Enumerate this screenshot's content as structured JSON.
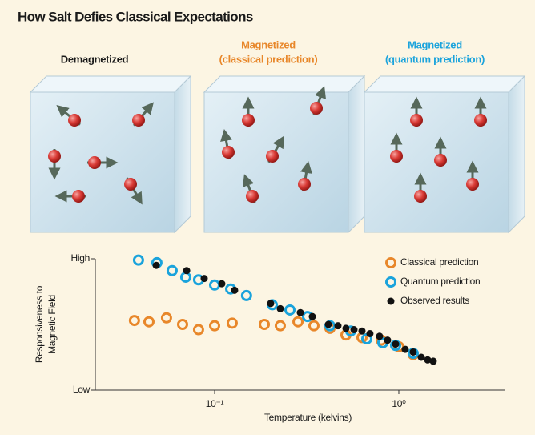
{
  "panels": [
    {
      "label": [
        "Demagnetized"
      ],
      "color": "#1a1a1a"
    },
    {
      "label": [
        "Magnetized",
        "(classical prediction)"
      ],
      "color": "#e8872a"
    },
    {
      "label": [
        "Magnetized",
        "(quantum prediction)"
      ],
      "color": "#1aa3dc"
    }
  ],
  "chart_data": {
    "type": "scatter",
    "title": "How Salt Defies Classical Expectations",
    "xlabel": "Temperature (kelvins)",
    "ylabel": [
      "Responsiveness to",
      "Magnetic Field"
    ],
    "xscale": "log",
    "xlim": [
      0.0225,
      3.75
    ],
    "xticks": [
      {
        "value": 0.1,
        "label": "10⁻¹"
      },
      {
        "value": 1,
        "label": "10⁰"
      }
    ],
    "ylim": [
      0,
      1
    ],
    "yticks": [
      {
        "value": 1,
        "label": "High"
      },
      {
        "value": 0,
        "label": "Low"
      }
    ],
    "legend": "upper right",
    "series": [
      {
        "name": "Classical prediction",
        "color": "#e8872a",
        "marker": "ring",
        "x": [
          0.0367,
          0.044,
          0.0548,
          0.067,
          0.0818,
          0.1,
          0.1246,
          0.1861,
          0.2272,
          0.2834,
          0.346,
          0.4228,
          0.5164,
          0.631,
          0.802,
          1.0,
          1.197
        ],
        "values": [
          0.53,
          0.52,
          0.55,
          0.5,
          0.46,
          0.49,
          0.51,
          0.5,
          0.49,
          0.52,
          0.49,
          0.47,
          0.42,
          0.4,
          0.38,
          0.33,
          0.27
        ]
      },
      {
        "name": "Quantum prediction",
        "color": "#1aa3dc",
        "marker": "ring",
        "x": [
          0.0386,
          0.0486,
          0.0588,
          0.0697,
          0.0818,
          0.1,
          0.1222,
          0.149,
          0.2056,
          0.2563,
          0.3193,
          0.4228,
          0.548,
          0.67,
          0.818,
          0.961,
          1.197
        ],
        "values": [
          0.99,
          0.97,
          0.91,
          0.86,
          0.84,
          0.8,
          0.77,
          0.72,
          0.65,
          0.61,
          0.56,
          0.49,
          0.45,
          0.39,
          0.36,
          0.34,
          0.28
        ]
      },
      {
        "name": "Observed results",
        "color": "#111111",
        "marker": "dot",
        "x": [
          0.0482,
          0.0705,
          0.0878,
          0.1094,
          0.1284,
          0.2015,
          0.2272,
          0.292,
          0.3392,
          0.4145,
          0.4673,
          0.5164,
          0.571,
          0.631,
          0.697,
          0.786,
          0.869,
          0.961,
          1.083,
          1.197,
          1.324,
          1.434,
          1.538
        ],
        "values": [
          0.95,
          0.91,
          0.85,
          0.81,
          0.76,
          0.66,
          0.62,
          0.59,
          0.56,
          0.5,
          0.49,
          0.47,
          0.46,
          0.45,
          0.43,
          0.41,
          0.38,
          0.35,
          0.31,
          0.29,
          0.25,
          0.23,
          0.22
        ]
      }
    ]
  }
}
